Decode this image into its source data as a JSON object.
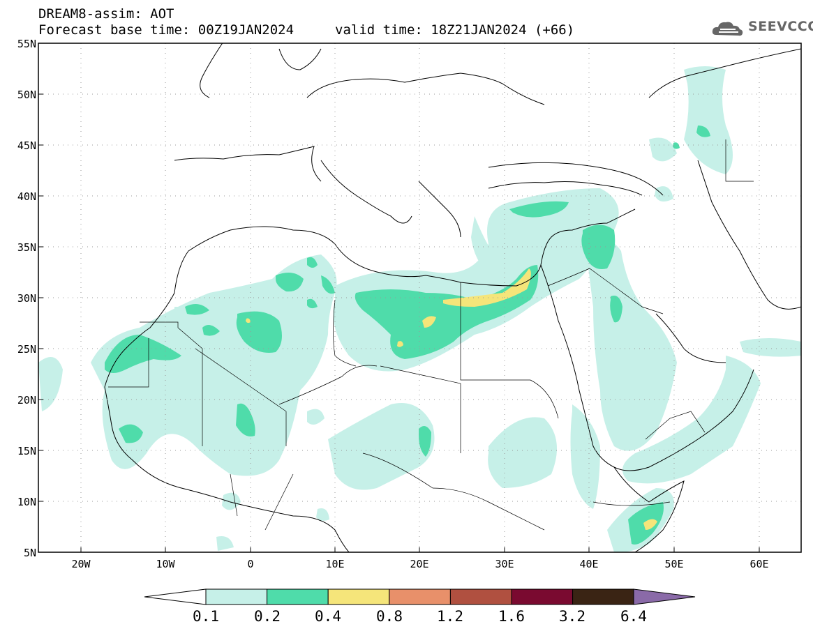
{
  "header": {
    "line1": "DREAM8-assim: AOT",
    "line2_left": "Forecast base time: 00Z19JAN2024",
    "line2_right": "valid time: 18Z21JAN2024 (+66)",
    "logo_text": "SEEVCCC"
  },
  "map": {
    "lat_range": [
      5,
      55
    ],
    "lon_range": [
      -25,
      65
    ],
    "lat_labels": [
      "55N",
      "50N",
      "45N",
      "40N",
      "35N",
      "30N",
      "25N",
      "20N",
      "15N",
      "10N",
      "5N"
    ],
    "lon_labels": [
      "20W",
      "10W",
      "0",
      "10E",
      "20E",
      "30E",
      "40E",
      "50E",
      "60E"
    ],
    "grid": "dotted",
    "field": "Aerosol Optical Thickness (dust)"
  },
  "colorbar": {
    "labels": [
      "0.1",
      "0.2",
      "0.4",
      "0.8",
      "1.2",
      "1.6",
      "3.2",
      "6.4"
    ],
    "colors": [
      "#c6f0e8",
      "#4fdcaa",
      "#f5e57a",
      "#e8906a",
      "#b05040",
      "#7a0a30",
      "#3a2414",
      "#8a6aa8"
    ]
  },
  "colors": {
    "level1": "#c6f0e8",
    "level2": "#4fdcaa",
    "level3": "#f5e57a"
  }
}
